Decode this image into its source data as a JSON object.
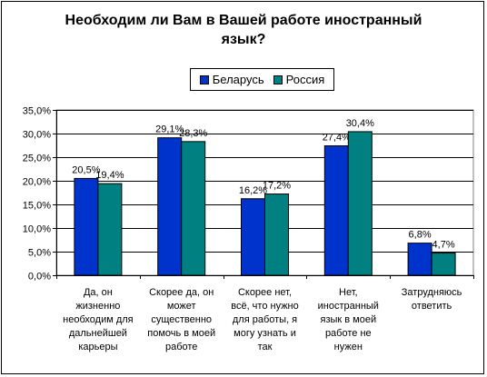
{
  "chart_data": {
    "type": "bar",
    "title": "Необходим ли Вам в Вашей работе иностранный язык?",
    "title_lines": [
      "Необходим ли Вам в Вашей работе иностранный",
      "язык?"
    ],
    "categories": [
      "Да, он жизненно необходим для дальнейшей карьеры",
      "Скорее да, он может существенно помочь в моей работе",
      "Скорее нет, всё, что нужно для работы, я могу узнать и так",
      "Нет, иностранный язык в моей работе не нужен",
      "Затрудняюсь ответить"
    ],
    "category_lines": [
      [
        "Да, он",
        "жизненно",
        "необходим для",
        "дальнейшей",
        "карьеры"
      ],
      [
        "Скорее да, он",
        "может",
        "существенно",
        "помочь в моей",
        "работе"
      ],
      [
        "Скорее нет,",
        "всё, что нужно",
        "для работы, я",
        "могу узнать и",
        "так"
      ],
      [
        "Нет,",
        "иностранный",
        "язык в моей",
        "работе не",
        "нужен"
      ],
      [
        "Затрудняюсь",
        "ответить"
      ]
    ],
    "series": [
      {
        "name": "Беларусь",
        "color": "#0033cc",
        "values": [
          20.5,
          29.1,
          16.2,
          27.4,
          6.8
        ],
        "labels": [
          "20,5%",
          "29,1%",
          "16,2%",
          "27,4%",
          "6,8%"
        ]
      },
      {
        "name": "Россия",
        "color": "#008080",
        "values": [
          19.4,
          28.3,
          17.2,
          30.4,
          4.7
        ],
        "labels": [
          "19,4%",
          "28,3%",
          "17,2%",
          "30,4%",
          "4,7%"
        ]
      }
    ],
    "ylim": [
      0,
      35
    ],
    "yticks": [
      0,
      5,
      10,
      15,
      20,
      25,
      30,
      35
    ],
    "ytick_labels": [
      "0,0%",
      "5,0%",
      "10,0%",
      "15,0%",
      "20,0%",
      "25,0%",
      "30,0%",
      "35,0%"
    ],
    "grid": true,
    "legend_position": "top"
  }
}
